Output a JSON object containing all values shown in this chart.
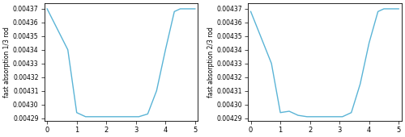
{
  "plot1": {
    "ylabel": "fast absorption 1/3 rod",
    "x": [
      0.0,
      0.7,
      1.0,
      1.3,
      1.6,
      1.9,
      2.2,
      2.5,
      2.8,
      3.1,
      3.4,
      3.7,
      4.0,
      4.3,
      4.5,
      4.7,
      5.0
    ],
    "y": [
      0.00437,
      0.00434,
      0.004294,
      0.004291,
      0.004291,
      0.004291,
      0.004291,
      0.004291,
      0.004291,
      0.004291,
      0.004293,
      0.00431,
      0.00434,
      0.004368,
      0.00437,
      0.00437,
      0.00437
    ],
    "ylim": [
      0.004288,
      0.004374
    ],
    "xlim": [
      -0.1,
      5.1
    ],
    "xticks": [
      0,
      1,
      2,
      3,
      4,
      5
    ]
  },
  "plot2": {
    "ylabel": "fast absorption 2/3 rod",
    "x": [
      0.0,
      0.7,
      1.0,
      1.3,
      1.6,
      1.9,
      2.2,
      2.5,
      2.8,
      3.1,
      3.4,
      3.7,
      4.0,
      4.3,
      4.5,
      4.7,
      5.0
    ],
    "y": [
      0.004368,
      0.00433,
      0.004294,
      0.004295,
      0.004292,
      0.004291,
      0.004291,
      0.004291,
      0.004291,
      0.004291,
      0.004294,
      0.004315,
      0.004345,
      0.004368,
      0.00437,
      0.00437,
      0.00437
    ],
    "ylim": [
      0.004288,
      0.004374
    ],
    "xlim": [
      -0.1,
      5.1
    ],
    "xticks": [
      0,
      1,
      2,
      3,
      4,
      5
    ]
  },
  "line_color": "#5ab4d6",
  "line_width": 1.0,
  "ytick_labels": [
    "0.00429",
    "0.00430",
    "0.00431",
    "0.00432",
    "0.00433",
    "0.00434",
    "0.00435",
    "0.00436",
    "0.00437"
  ],
  "ytick_values": [
    0.00429,
    0.0043,
    0.00431,
    0.00432,
    0.00433,
    0.00434,
    0.00435,
    0.00436,
    0.00437
  ]
}
